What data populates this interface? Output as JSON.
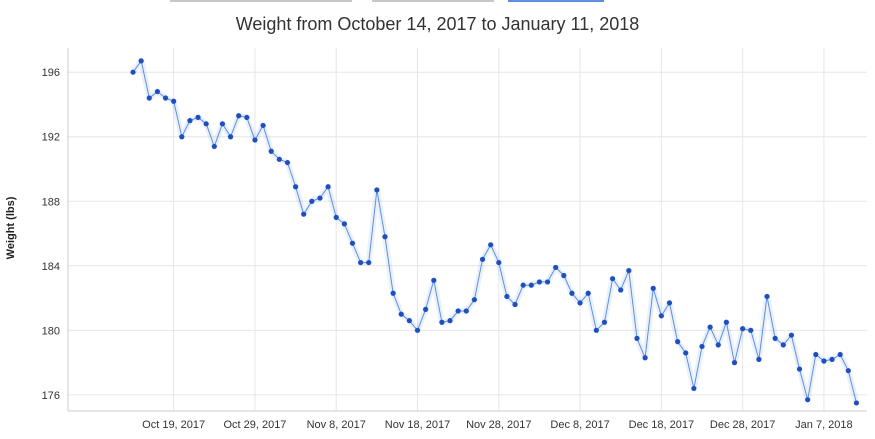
{
  "chart_data": {
    "type": "line",
    "title": "Weight from October 14, 2017 to January 11, 2018",
    "xlabel": "",
    "ylabel": "Weight (lbs)",
    "ylim": [
      175,
      197.5
    ],
    "xlim": [
      "2017-10-14",
      "2018-01-11"
    ],
    "x_ticks": [
      {
        "date": "2017-10-19",
        "label": "Oct 19, 2017"
      },
      {
        "date": "2017-10-29",
        "label": "Oct 29, 2017"
      },
      {
        "date": "2017-11-08",
        "label": "Nov 8, 2017"
      },
      {
        "date": "2017-11-18",
        "label": "Nov 18, 2017"
      },
      {
        "date": "2017-11-28",
        "label": "Nov 28, 2017"
      },
      {
        "date": "2017-12-08",
        "label": "Dec 8, 2017"
      },
      {
        "date": "2017-12-18",
        "label": "Dec 18, 2017"
      },
      {
        "date": "2017-12-28",
        "label": "Dec 28, 2017"
      },
      {
        "date": "2018-01-07",
        "label": "Jan 7, 2018"
      }
    ],
    "y_ticks": [
      {
        "value": 176,
        "label": "176"
      },
      {
        "value": 180,
        "label": "180"
      },
      {
        "value": 184,
        "label": "184"
      },
      {
        "value": 188,
        "label": "188"
      },
      {
        "value": 192,
        "label": "192"
      },
      {
        "value": 196,
        "label": "196"
      }
    ],
    "grid": true,
    "legend": "none",
    "colors": {
      "line": "#5b8fe0",
      "marker": "#1f4fbf",
      "grid": "#e6e6e6",
      "axis": "#cccccc"
    },
    "series": [
      {
        "x": [
          "2017-10-14",
          "2017-10-15",
          "2017-10-16",
          "2017-10-17",
          "2017-10-18",
          "2017-10-19",
          "2017-10-20",
          "2017-10-21",
          "2017-10-22",
          "2017-10-23",
          "2017-10-24",
          "2017-10-25",
          "2017-10-26",
          "2017-10-27",
          "2017-10-28",
          "2017-10-29",
          "2017-10-30",
          "2017-10-31",
          "2017-11-01",
          "2017-11-02",
          "2017-11-03",
          "2017-11-04",
          "2017-11-05",
          "2017-11-06",
          "2017-11-07",
          "2017-11-08",
          "2017-11-09",
          "2017-11-10",
          "2017-11-11",
          "2017-11-12",
          "2017-11-13",
          "2017-11-14",
          "2017-11-15",
          "2017-11-16",
          "2017-11-17",
          "2017-11-18",
          "2017-11-19",
          "2017-11-20",
          "2017-11-21",
          "2017-11-22",
          "2017-11-23",
          "2017-11-24",
          "2017-11-25",
          "2017-11-26",
          "2017-11-27",
          "2017-11-28",
          "2017-11-29",
          "2017-11-30",
          "2017-12-01",
          "2017-12-02",
          "2017-12-03",
          "2017-12-04",
          "2017-12-05",
          "2017-12-06",
          "2017-12-07",
          "2017-12-08",
          "2017-12-09",
          "2017-12-10",
          "2017-12-11",
          "2017-12-12",
          "2017-12-13",
          "2017-12-14",
          "2017-12-15",
          "2017-12-16",
          "2017-12-17",
          "2017-12-18",
          "2017-12-19",
          "2017-12-20",
          "2017-12-21",
          "2017-12-22",
          "2017-12-23",
          "2017-12-24",
          "2017-12-25",
          "2017-12-26",
          "2017-12-27",
          "2017-12-28",
          "2017-12-29",
          "2017-12-30",
          "2017-12-31",
          "2018-01-01",
          "2018-01-02",
          "2018-01-03",
          "2018-01-04",
          "2018-01-05",
          "2018-01-06",
          "2018-01-07",
          "2018-01-08",
          "2018-01-09",
          "2018-01-10",
          "2018-01-11"
        ],
        "y": [
          196.0,
          196.7,
          194.4,
          194.8,
          194.4,
          194.2,
          192.0,
          193.0,
          193.2,
          192.8,
          191.4,
          192.8,
          192.0,
          193.3,
          193.2,
          191.8,
          192.7,
          191.1,
          190.6,
          190.4,
          188.9,
          187.2,
          188.0,
          188.2,
          188.9,
          187.0,
          186.6,
          185.4,
          184.2,
          184.2,
          188.7,
          185.8,
          182.3,
          181.0,
          180.6,
          180.0,
          181.3,
          183.1,
          180.5,
          180.6,
          181.2,
          181.2,
          181.9,
          184.4,
          185.3,
          184.2,
          182.1,
          181.6,
          182.8,
          182.8,
          183.0,
          183.0,
          183.9,
          183.4,
          182.3,
          181.7,
          182.3,
          180.0,
          180.5,
          183.2,
          182.5,
          183.7,
          179.5,
          178.3,
          182.6,
          180.9,
          181.7,
          179.3,
          178.6,
          176.4,
          179.0,
          180.2,
          179.1,
          180.5,
          178.0,
          180.1,
          180.0,
          178.2,
          182.1,
          179.5,
          179.1,
          179.7,
          177.6,
          175.7,
          178.5,
          178.1,
          178.2,
          178.5,
          177.5,
          175.5
        ]
      }
    ]
  },
  "tabs": [
    {
      "left": 0,
      "width": 0,
      "active": false
    }
  ]
}
